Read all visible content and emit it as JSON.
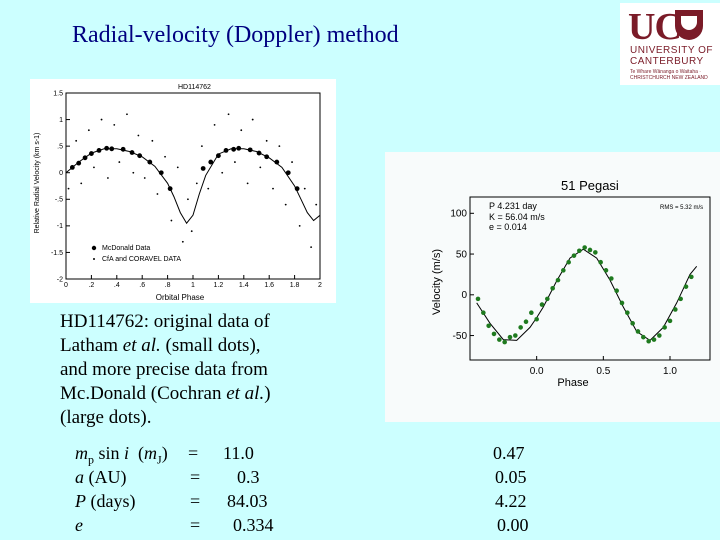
{
  "title": "Radial-velocity (Doppler) method",
  "logo": {
    "name": "UC",
    "line1": "UNIVERSITY OF",
    "line2": "CANTERBURY",
    "line3": "Te Whare Wānanga o Waitaha · CHRISTCHURCH NEW ZEALAND"
  },
  "caption": {
    "line1": "HD114762: original data of",
    "line2a": "Latham ",
    "line2b": "et al.",
    "line2c": " (small dots),",
    "line3": "and more precise data from",
    "line4a": "Mc.Donald  (Cochran ",
    "line4b": "et al.",
    "line4c": ")",
    "line5": "(large dots)."
  },
  "stats": {
    "rows": [
      {
        "label": "mp sin i  (mJ)",
        "eq": "=",
        "v1": "11.0",
        "v2": "0.47"
      },
      {
        "label": "a (AU)",
        "eq": "=",
        "v1": "0.3",
        "v2": "0.05"
      },
      {
        "label": "P (days)",
        "eq": "=",
        "v1": "84.03",
        "v2": "4.22"
      },
      {
        "label": "e",
        "eq": "=",
        "v1": "0.334",
        "v2": "0.00"
      }
    ]
  },
  "chart_data": [
    {
      "type": "scatter",
      "title": "HD114762",
      "xlabel": "Orbital Phase",
      "ylabel": "Relative Radial Velocity (km s-1)",
      "xlim": [
        0,
        2
      ],
      "ylim": [
        -2,
        1.5
      ],
      "xticks": [
        "0",
        ".2",
        ".4",
        ".6",
        ".8",
        "1",
        "1.2",
        "1.4",
        "1.6",
        "1.8",
        "2"
      ],
      "yticks": [
        "1.5",
        "1",
        ".5",
        "0",
        "-.5",
        "-1",
        "-1.5",
        "-2"
      ],
      "legend": [
        "McDonald Data",
        "CfA and CORAVEL DATA"
      ],
      "legend_position": "bottom-left",
      "series": [
        {
          "name": "Fit",
          "x": [
            0,
            0.1,
            0.2,
            0.3,
            0.4,
            0.5,
            0.6,
            0.7,
            0.8,
            0.85,
            0.9,
            0.95,
            1.0,
            1.05,
            1.1,
            1.2,
            1.3,
            1.4,
            1.5,
            1.6,
            1.7,
            1.8,
            1.85,
            1.9,
            1.95,
            2.0
          ],
          "y": [
            0.0,
            0.2,
            0.37,
            0.45,
            0.45,
            0.4,
            0.3,
            0.12,
            -0.2,
            -0.45,
            -0.75,
            -0.95,
            -0.8,
            -0.4,
            -0.05,
            0.35,
            0.45,
            0.45,
            0.4,
            0.28,
            0.1,
            -0.25,
            -0.5,
            -0.75,
            -0.9,
            -0.8
          ]
        },
        {
          "name": "McDonald Data",
          "x": [
            0.05,
            0.1,
            0.15,
            0.2,
            0.26,
            0.32,
            0.36,
            0.45,
            0.52,
            0.58,
            0.66,
            0.75,
            0.82,
            1.08,
            1.14,
            1.2,
            1.26,
            1.32,
            1.36,
            1.45,
            1.52,
            1.58,
            1.66,
            1.75,
            1.82
          ],
          "y": [
            0.1,
            0.18,
            0.28,
            0.36,
            0.42,
            0.46,
            0.45,
            0.44,
            0.38,
            0.32,
            0.2,
            0.0,
            -0.3,
            0.08,
            0.2,
            0.32,
            0.42,
            0.44,
            0.46,
            0.43,
            0.37,
            0.3,
            0.2,
            0.0,
            -0.3
          ]
        },
        {
          "name": "CfA and CORAVEL DATA",
          "x": [
            0.02,
            0.08,
            0.12,
            0.18,
            0.22,
            0.28,
            0.33,
            0.38,
            0.42,
            0.48,
            0.53,
            0.57,
            0.62,
            0.68,
            0.72,
            0.78,
            0.83,
            0.88,
            0.92,
            0.96,
            0.99,
            1.03,
            1.07,
            1.12,
            1.17,
            1.23,
            1.28,
            1.33,
            1.38,
            1.43,
            1.47,
            1.53,
            1.58,
            1.63,
            1.68,
            1.73,
            1.78,
            1.84,
            1.88,
            1.93,
            1.97
          ],
          "y": [
            -0.3,
            0.6,
            -0.2,
            0.8,
            0.1,
            1.0,
            -0.1,
            0.9,
            0.2,
            1.1,
            0.0,
            0.7,
            -0.1,
            0.6,
            -0.4,
            0.3,
            -0.9,
            0.1,
            -1.3,
            -0.5,
            -1.1,
            -0.2,
            0.5,
            -0.3,
            0.9,
            0.0,
            1.1,
            0.2,
            0.8,
            -0.2,
            1.0,
            0.1,
            0.6,
            -0.3,
            0.5,
            -0.6,
            0.2,
            -1.0,
            -0.3,
            -1.4,
            -0.6
          ]
        }
      ]
    },
    {
      "type": "scatter",
      "title": "51 Pegasi",
      "xlabel": "Phase",
      "ylabel": "Velocity  (m/s)",
      "xlim": [
        -0.5,
        1.3
      ],
      "ylim": [
        -80,
        120
      ],
      "xticks": [
        "0.0",
        "0.5",
        "1.0"
      ],
      "yticks": [
        "100",
        "50",
        "0",
        "-50"
      ],
      "annotation": {
        "line1": "P    4.231 day",
        "line2": "K = 56.04 m/s",
        "line3": "e = 0.014",
        "rms": "RMS = 5.32 m/s"
      },
      "series": [
        {
          "name": "Fit",
          "x": [
            -0.45,
            -0.35,
            -0.25,
            -0.15,
            -0.05,
            0.0,
            0.05,
            0.15,
            0.25,
            0.35,
            0.45,
            0.55,
            0.65,
            0.75,
            0.85,
            0.95,
            1.05,
            1.15,
            1.2
          ],
          "y": [
            -10,
            -35,
            -55,
            -56,
            -40,
            -28,
            -15,
            17,
            45,
            56,
            45,
            18,
            -15,
            -45,
            -56,
            -40,
            -10,
            25,
            35
          ]
        },
        {
          "name": "Observations",
          "x": [
            -0.44,
            -0.4,
            -0.36,
            -0.32,
            -0.28,
            -0.24,
            -0.2,
            -0.16,
            -0.12,
            -0.08,
            -0.04,
            0.0,
            0.04,
            0.08,
            0.12,
            0.16,
            0.2,
            0.24,
            0.28,
            0.32,
            0.36,
            0.4,
            0.44,
            0.48,
            0.52,
            0.56,
            0.6,
            0.64,
            0.68,
            0.72,
            0.76,
            0.8,
            0.84,
            0.88,
            0.92,
            0.96,
            1.0,
            1.04,
            1.08,
            1.12,
            1.16
          ],
          "y": [
            -5,
            -22,
            -38,
            -48,
            -55,
            -58,
            -52,
            -50,
            -40,
            -33,
            -22,
            -30,
            -12,
            -5,
            8,
            18,
            30,
            40,
            48,
            54,
            58,
            55,
            52,
            40,
            30,
            20,
            5,
            -10,
            -22,
            -35,
            -45,
            -52,
            -57,
            -55,
            -50,
            -40,
            -32,
            -18,
            -5,
            10,
            22
          ]
        }
      ]
    }
  ]
}
